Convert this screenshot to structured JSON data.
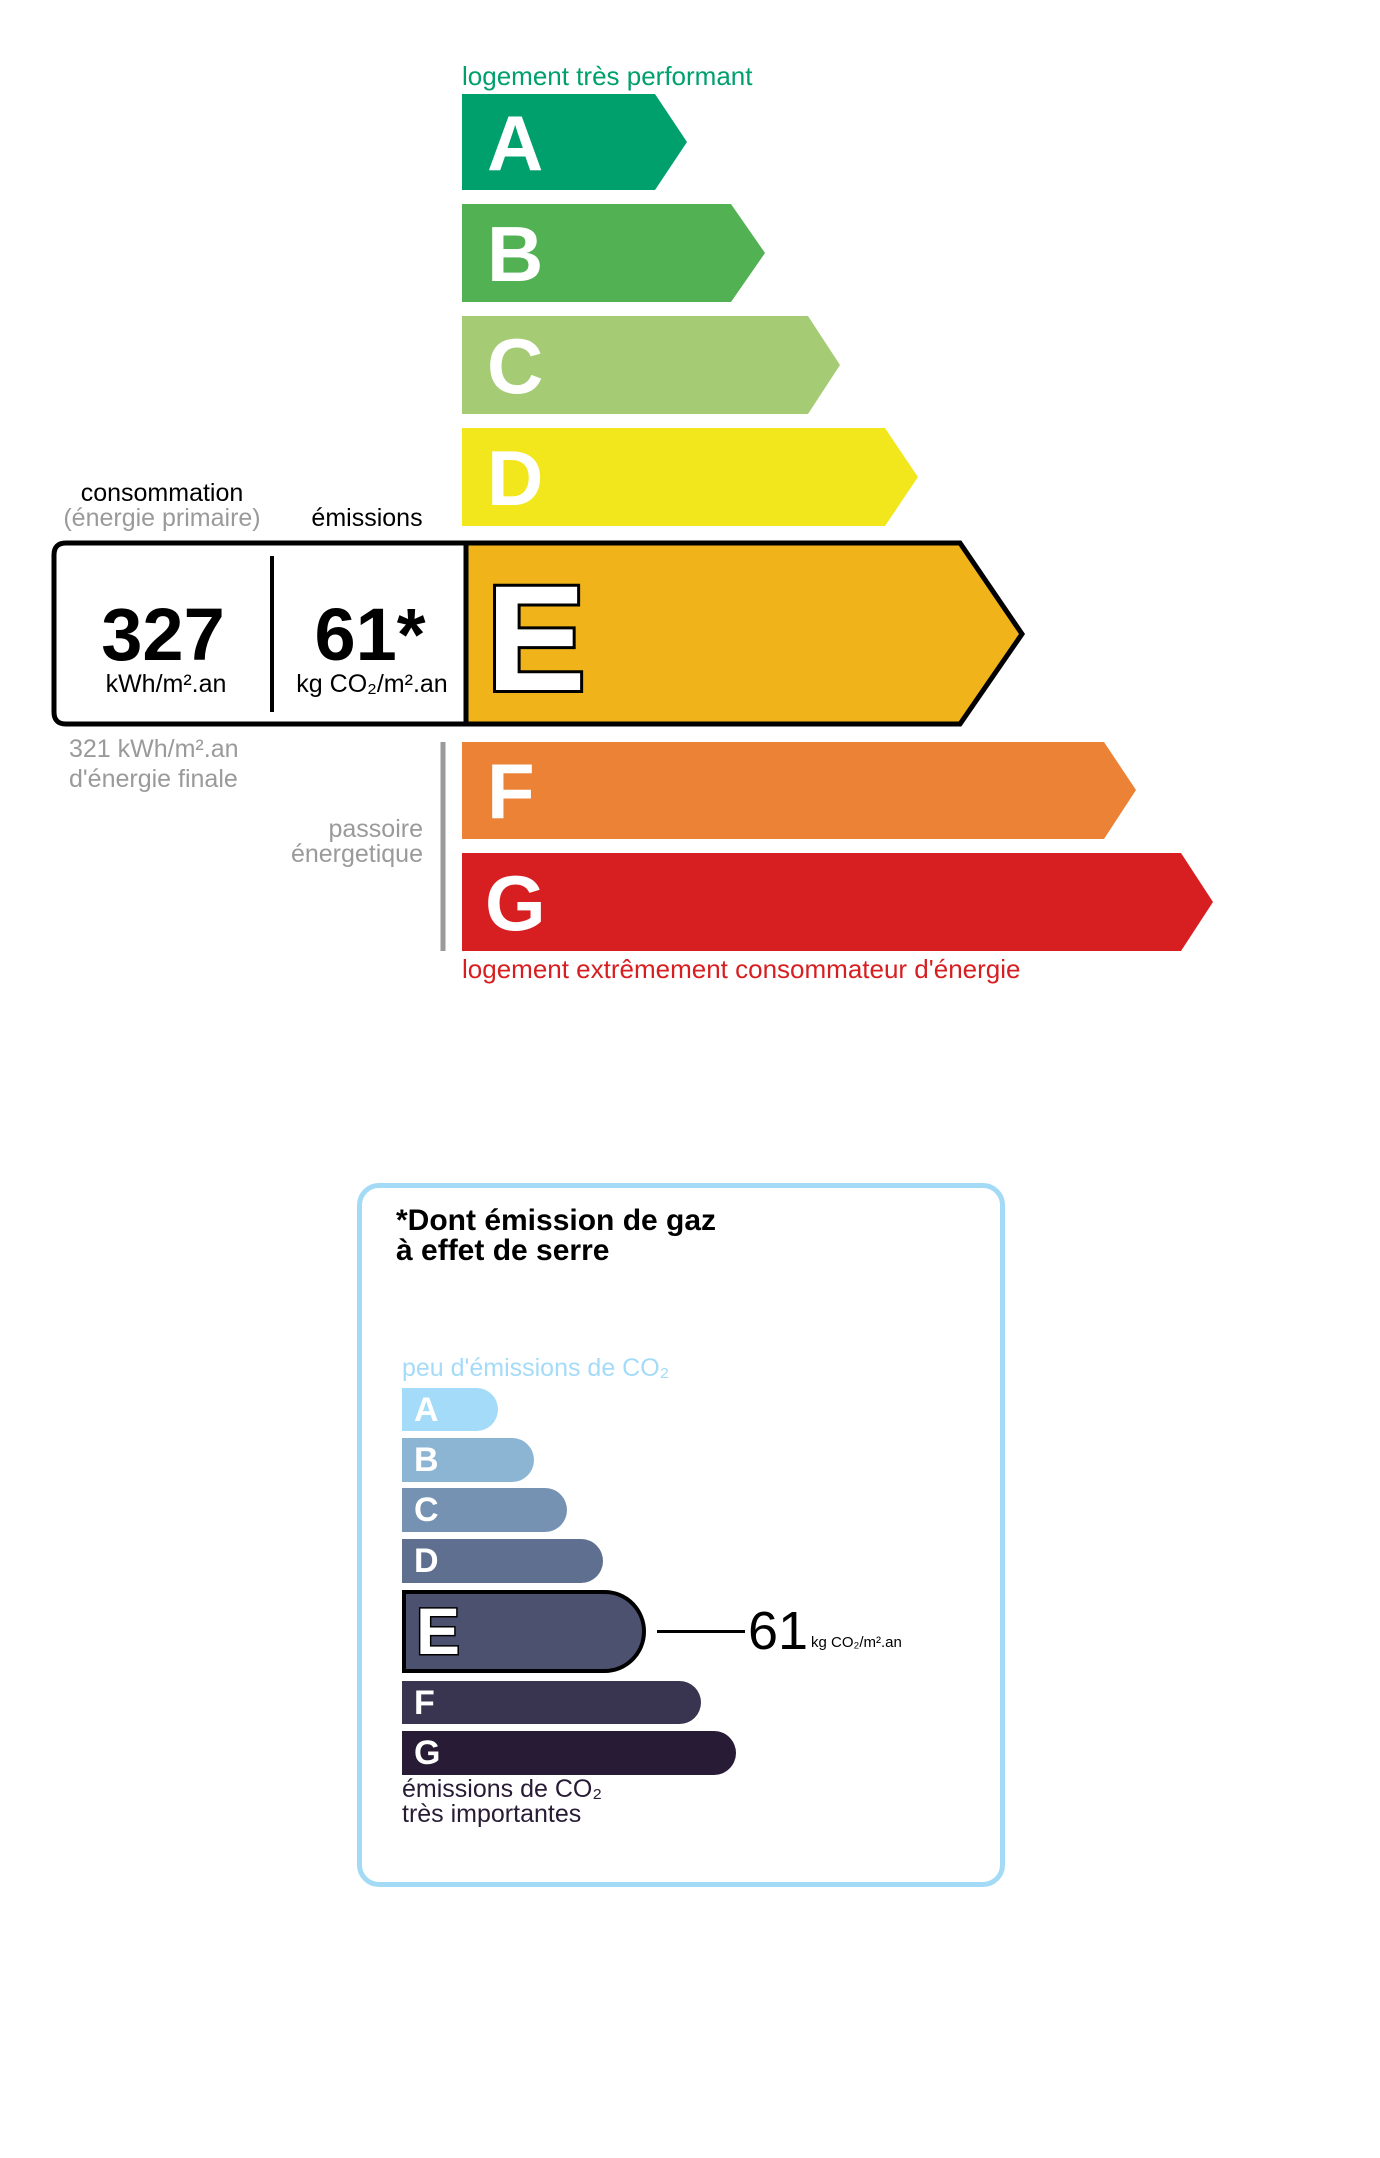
{
  "energy": {
    "top_label": "logement très performant",
    "bottom_label": "logement extrêmement consommateur d'énergie",
    "classes": [
      {
        "letter": "A",
        "color": "#00a06d"
      },
      {
        "letter": "B",
        "color": "#52b153"
      },
      {
        "letter": "C",
        "color": "#a5cc74"
      },
      {
        "letter": "D",
        "color": "#f2e61d"
      },
      {
        "letter": "E",
        "color": "#f0b41a"
      },
      {
        "letter": "F",
        "color": "#eb8235"
      },
      {
        "letter": "G",
        "color": "#d71f21"
      }
    ],
    "current_class": "E",
    "consumption_label": "consommation",
    "consumption_sublabel": "(énergie primaire)",
    "emissions_label": "émissions",
    "consumption_value": "327",
    "consumption_unit": "kWh/m².an",
    "emissions_value": "61*",
    "emissions_unit": "kg CO₂/m².an",
    "final_energy_value": "321 kWh/m².an",
    "final_energy_label": "d'énergie finale",
    "passoire_line1": "passoire",
    "passoire_line2": "énergetique"
  },
  "ges": {
    "title_line1": "*Dont émission de gaz",
    "title_line2": "à effet de serre",
    "top_label": "peu d'émissions de CO₂",
    "bottom_line1": "émissions de CO₂",
    "bottom_line2": "très importantes",
    "classes": [
      {
        "letter": "A",
        "color": "#a4dbf8"
      },
      {
        "letter": "B",
        "color": "#8cb4d3"
      },
      {
        "letter": "C",
        "color": "#7692b2"
      },
      {
        "letter": "D",
        "color": "#5f6f90"
      },
      {
        "letter": "E",
        "color": "#4d5170"
      },
      {
        "letter": "F",
        "color": "#393551"
      },
      {
        "letter": "G",
        "color": "#281b35"
      }
    ],
    "current_class": "E",
    "value": "61",
    "unit": "kg CO₂/m².an",
    "border_color": "#a3daf5"
  }
}
